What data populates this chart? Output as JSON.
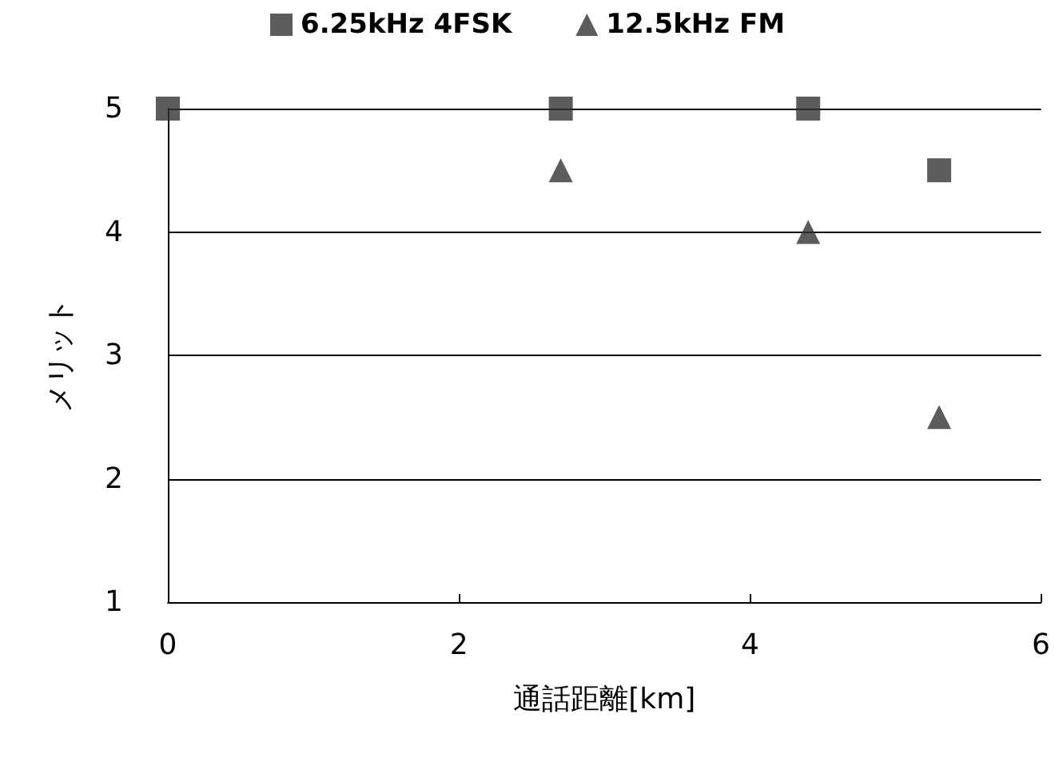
{
  "chart_data": {
    "type": "scatter",
    "xlabel": "通話距離[km]",
    "ylabel": "メリット",
    "series": [
      {
        "name": "6.25kHz 4FSK",
        "color": "#333333",
        "marker": "square",
        "x": [
          0,
          2.7,
          4.4,
          5.3
        ],
        "values": [
          5,
          5,
          5,
          4.5
        ]
      },
      {
        "name": "12.5kHz FM",
        "color": "#333333",
        "marker": "triangle",
        "x": [
          2.7,
          4.4,
          5.3
        ],
        "values": [
          4.5,
          4,
          2.5
        ]
      }
    ],
    "xlim": [
      0,
      6
    ],
    "xticks": [
      0,
      2,
      4,
      6
    ],
    "ylim": [
      1,
      5
    ],
    "yticks": [
      1,
      2,
      3,
      4,
      5
    ],
    "grid": "y",
    "legend": "top"
  }
}
